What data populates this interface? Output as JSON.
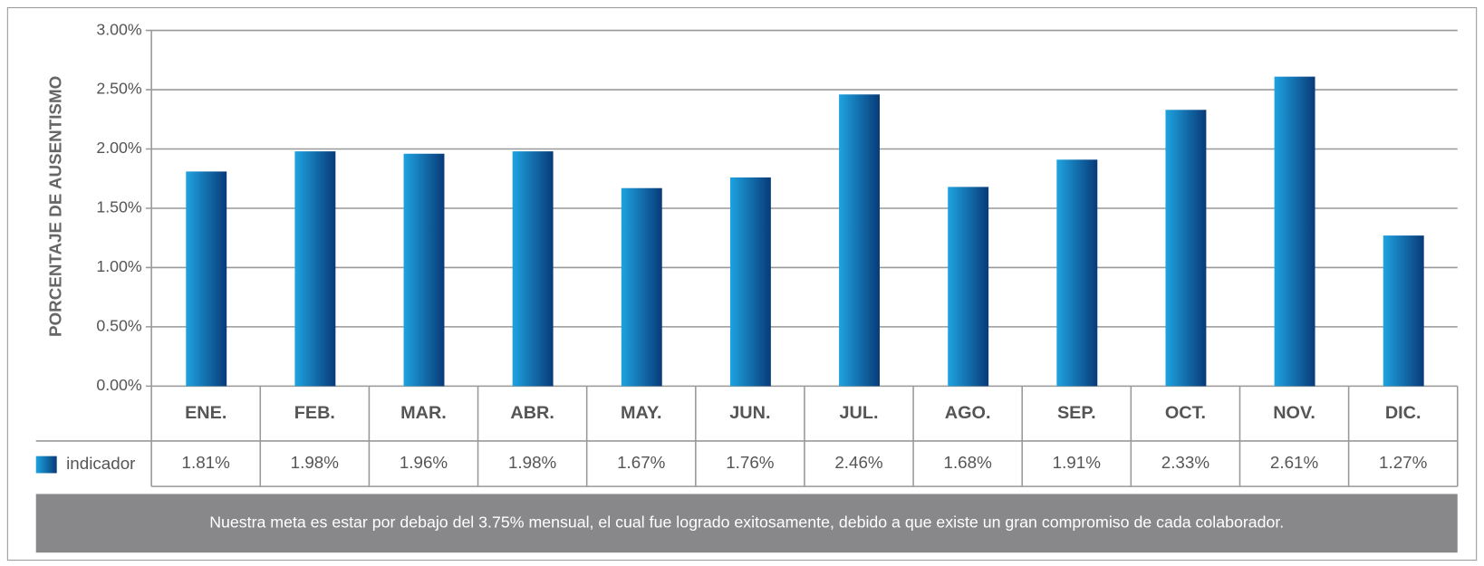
{
  "chart_data": {
    "type": "bar",
    "y_axis_label": "PORCENTAJE DE AUSENTISMO",
    "categories": [
      "ENE.",
      "FEB.",
      "MAR.",
      "ABR.",
      "MAY.",
      "JUN.",
      "JUL.",
      "AGO.",
      "SEP.",
      "OCT.",
      "NOV.",
      "DIC."
    ],
    "series": [
      {
        "name": "indicador",
        "color": "#0b5fa5",
        "values": [
          1.81,
          1.98,
          1.96,
          1.98,
          1.67,
          1.76,
          2.46,
          1.68,
          1.91,
          2.33,
          2.61,
          1.27
        ],
        "value_labels": [
          "1.81%",
          "1.98%",
          "1.96%",
          "1.98%",
          "1.67%",
          "1.76%",
          "2.46%",
          "1.68%",
          "1.91%",
          "2.33%",
          "2.61%",
          "1.27%"
        ]
      }
    ],
    "ylim": [
      0,
      3
    ],
    "yticks": [
      {
        "value": 0,
        "label": "0.00%"
      },
      {
        "value": 0.5,
        "label": "0.50%"
      },
      {
        "value": 1,
        "label": "1.00%"
      },
      {
        "value": 1.5,
        "label": "1.50%"
      },
      {
        "value": 2,
        "label": "2.00%"
      },
      {
        "value": 2.5,
        "label": "2.50%"
      },
      {
        "value": 3,
        "label": "3.00%"
      }
    ],
    "grid": true,
    "note": "Nuestra meta es estar por debajo del 3.75% mensual, el cual fue logrado exitosamente, debido a que existe un gran compromiso de cada colaborador."
  }
}
